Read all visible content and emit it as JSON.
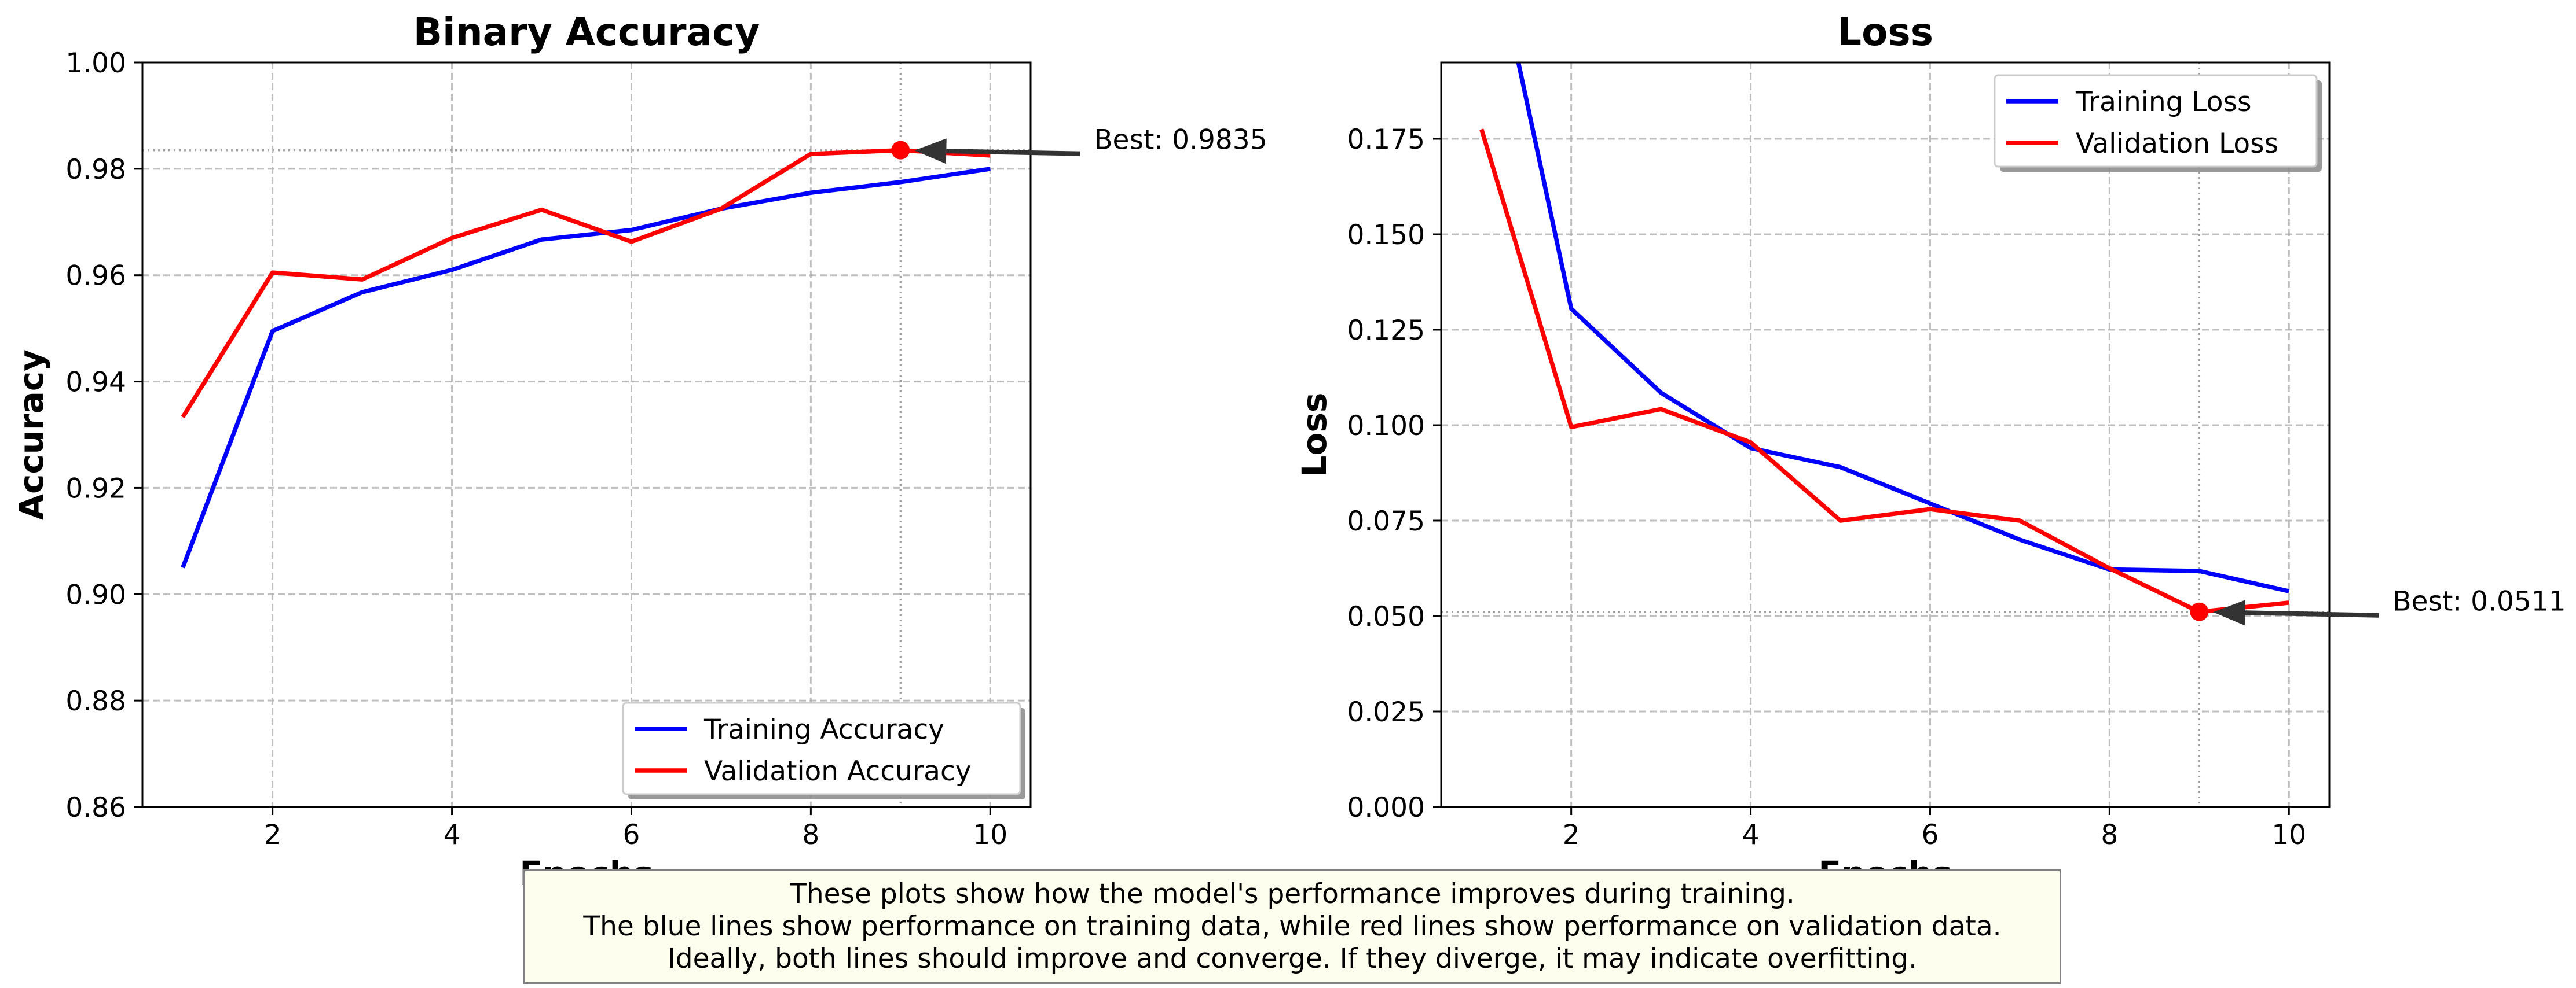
{
  "colors": {
    "training": "#0000ff",
    "validation": "#ff0000",
    "grid": "#b0b0b0",
    "caption_bg": "#fefeee"
  },
  "chart_data": [
    {
      "type": "line",
      "title": "Binary Accuracy",
      "xlabel": "Epochs",
      "ylabel": "Accuracy",
      "xlim": [
        0.55,
        10.45
      ],
      "ylim": [
        0.86,
        1.0
      ],
      "xticks": [
        2,
        4,
        6,
        8,
        10
      ],
      "yticks": [
        0.86,
        0.88,
        0.9,
        0.92,
        0.94,
        0.96,
        0.98,
        1.0
      ],
      "ytick_labels": [
        "0.86",
        "0.88",
        "0.90",
        "0.92",
        "0.94",
        "0.96",
        "0.98",
        "1.00"
      ],
      "grid": true,
      "legend_position": "lower-right",
      "x": [
        1,
        2,
        3,
        4,
        5,
        6,
        7,
        8,
        9,
        10
      ],
      "series": [
        {
          "name": "Training Accuracy",
          "color": "#0000ff",
          "values": [
            0.905,
            0.9495,
            0.9568,
            0.961,
            0.9667,
            0.9685,
            0.9725,
            0.9755,
            0.9775,
            0.98
          ]
        },
        {
          "name": "Validation Accuracy",
          "color": "#ff0000",
          "values": [
            0.9333,
            0.9605,
            0.9592,
            0.967,
            0.9723,
            0.9663,
            0.9725,
            0.9828,
            0.9835,
            0.9825
          ]
        }
      ],
      "best": {
        "epoch": 9,
        "value": 0.9835,
        "label": "Best: 0.9835"
      }
    },
    {
      "type": "line",
      "title": "Loss",
      "xlabel": "Epochs",
      "ylabel": "Loss",
      "xlim": [
        0.55,
        10.45
      ],
      "ylim": [
        0.0,
        0.195
      ],
      "xticks": [
        2,
        4,
        6,
        8,
        10
      ],
      "yticks": [
        0.0,
        0.025,
        0.05,
        0.075,
        0.1,
        0.125,
        0.15,
        0.175
      ],
      "ytick_labels": [
        "0.000",
        "0.025",
        "0.050",
        "0.075",
        "0.100",
        "0.125",
        "0.150",
        "0.175"
      ],
      "grid": true,
      "legend_position": "upper-right",
      "x": [
        1,
        2,
        3,
        4,
        5,
        6,
        7,
        8,
        9,
        10
      ],
      "series": [
        {
          "name": "Training Loss",
          "color": "#0000ff",
          "values": [
            0.24,
            0.1305,
            0.1085,
            0.094,
            0.089,
            0.0795,
            0.07,
            0.0622,
            0.0618,
            0.0565
          ]
        },
        {
          "name": "Validation Loss",
          "color": "#ff0000",
          "values": [
            0.1775,
            0.0995,
            0.1042,
            0.0955,
            0.075,
            0.078,
            0.075,
            0.0625,
            0.0511,
            0.0535
          ]
        }
      ],
      "best": {
        "epoch": 9,
        "value": 0.0511,
        "label": "Best: 0.0511"
      }
    }
  ],
  "caption": {
    "lines": [
      "These plots show how the model's performance improves during training.",
      "The blue lines show performance on training data, while red lines show performance on validation data.",
      "Ideally, both lines should improve and converge. If they diverge, it may indicate overfitting."
    ]
  }
}
